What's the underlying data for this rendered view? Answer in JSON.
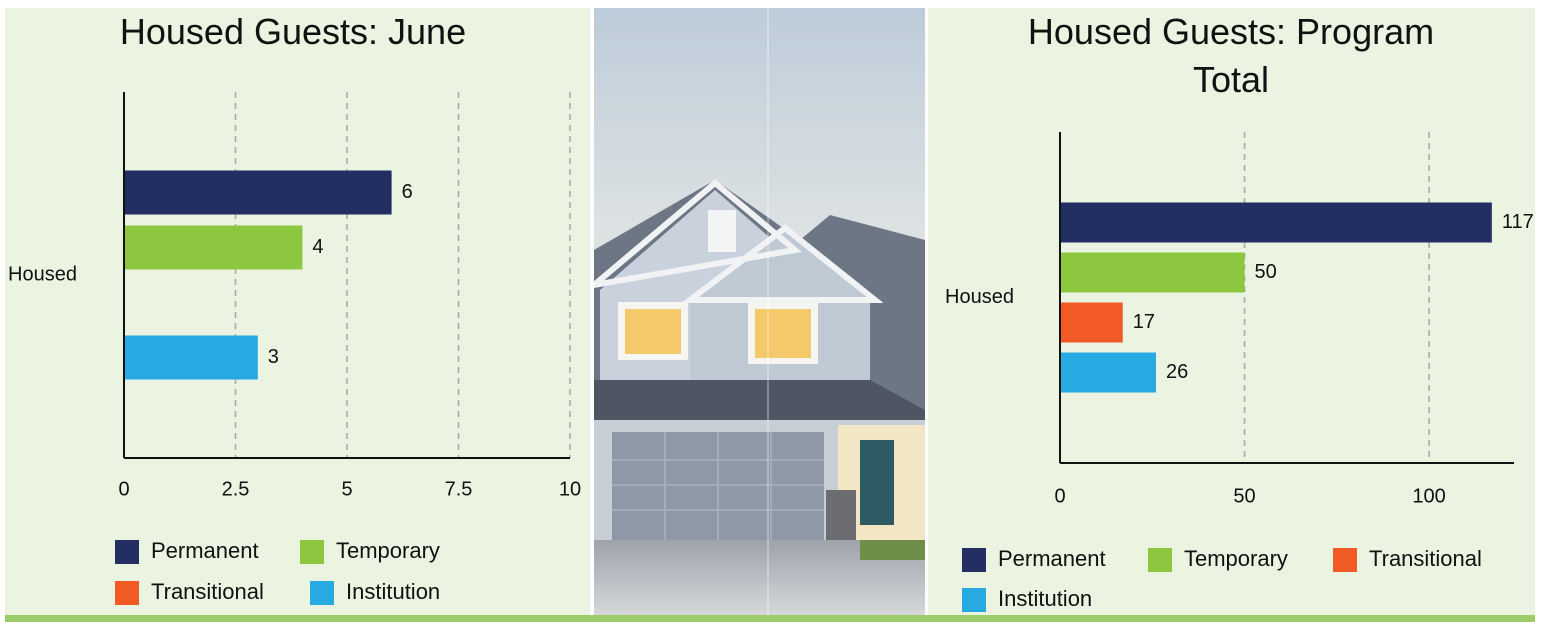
{
  "chart_data": [
    {
      "type": "bar",
      "orientation": "horizontal",
      "title": "Housed Guests: June",
      "categories": [
        "Housed"
      ],
      "series": [
        {
          "name": "Permanent",
          "color": "#232f63",
          "values": [
            6
          ]
        },
        {
          "name": "Temporary",
          "color": "#8dc63f",
          "values": [
            4
          ]
        },
        {
          "name": "Transitional",
          "color": "#f15a24",
          "values": [
            null
          ]
        },
        {
          "name": "Institution",
          "color": "#27aae1",
          "values": [
            3
          ]
        }
      ],
      "xlim": [
        0,
        10
      ],
      "xticks": [
        0,
        2.5,
        5,
        7.5,
        10
      ],
      "grid": true,
      "legend": "bottom"
    },
    {
      "type": "bar",
      "orientation": "horizontal",
      "title": "Housed Guests: Program Total",
      "categories": [
        "Housed"
      ],
      "series": [
        {
          "name": "Permanent",
          "color": "#232f63",
          "values": [
            117
          ]
        },
        {
          "name": "Temporary",
          "color": "#8dc63f",
          "values": [
            50
          ]
        },
        {
          "name": "Transitional",
          "color": "#f15a24",
          "values": [
            17
          ]
        },
        {
          "name": "Institution",
          "color": "#27aae1",
          "values": [
            26
          ]
        }
      ],
      "xlim": [
        0,
        123
      ],
      "xticks": [
        0,
        50,
        100
      ],
      "grid": true,
      "legend": "bottom"
    }
  ]
}
